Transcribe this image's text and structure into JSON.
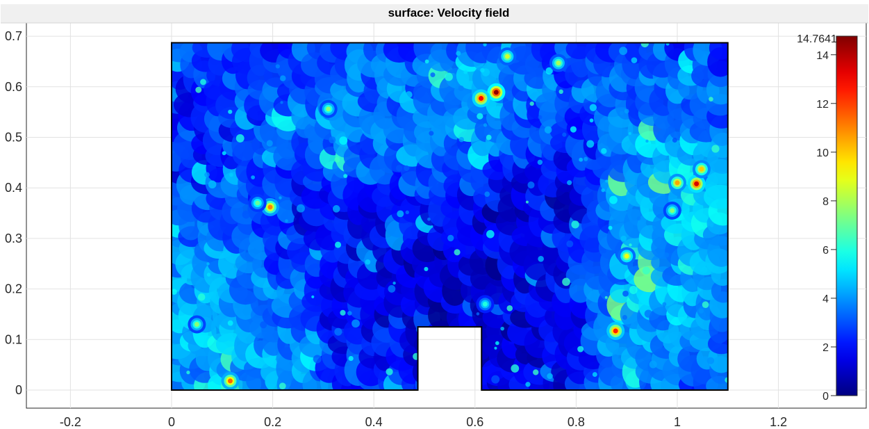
{
  "chart_data": {
    "type": "heatmap",
    "title": "surface: Velocity field",
    "xlabel": "",
    "ylabel": "",
    "xlim": [
      -0.3,
      1.35
    ],
    "ylim": [
      -0.035,
      0.72
    ],
    "grid": true,
    "x_ticks": [
      "-0.2",
      "0",
      "0.2",
      "0.4",
      "0.6",
      "0.8",
      "1",
      "1.2"
    ],
    "y_ticks": [
      "0",
      "0.1",
      "0.2",
      "0.3",
      "0.4",
      "0.5",
      "0.6",
      "0.7"
    ],
    "domain": {
      "outline": [
        [
          0,
          0
        ],
        [
          0,
          0.687
        ],
        [
          1.1,
          0.687
        ],
        [
          1.1,
          0
        ],
        [
          0.613,
          0
        ],
        [
          0.613,
          0.125
        ],
        [
          0.487,
          0.125
        ],
        [
          0.487,
          0
        ],
        [
          0,
          0
        ]
      ],
      "obstacle_x": [
        0.487,
        0.613
      ],
      "obstacle_top": 0.125
    },
    "colorbar": {
      "max_label": "14.7641",
      "min": 0,
      "max": 14.7641,
      "ticks": [
        "0",
        "2",
        "4",
        "6",
        "8",
        "10",
        "12",
        "14"
      ],
      "colormap": "jet"
    },
    "hotspots": [
      {
        "x": 0.642,
        "y": 0.589,
        "value": 14.5
      },
      {
        "x": 0.612,
        "y": 0.577,
        "value": 13.0
      },
      {
        "x": 0.195,
        "y": 0.362,
        "value": 11.0
      },
      {
        "x": 1.038,
        "y": 0.408,
        "value": 13.5
      },
      {
        "x": 1.0,
        "y": 0.41,
        "value": 10.5
      },
      {
        "x": 1.048,
        "y": 0.437,
        "value": 10.0
      },
      {
        "x": 0.878,
        "y": 0.117,
        "value": 12.5
      },
      {
        "x": 0.116,
        "y": 0.018,
        "value": 11.5
      },
      {
        "x": 0.9,
        "y": 0.265,
        "value": 9.0
      },
      {
        "x": 0.765,
        "y": 0.647,
        "value": 8.0
      },
      {
        "x": 0.664,
        "y": 0.66,
        "value": 8.5
      },
      {
        "x": 0.31,
        "y": 0.556,
        "value": 7.5
      },
      {
        "x": 0.05,
        "y": 0.13,
        "value": 7.5
      },
      {
        "x": 0.99,
        "y": 0.355,
        "value": 7.5
      },
      {
        "x": 0.17,
        "y": 0.37,
        "value": 7.0
      },
      {
        "x": 0.62,
        "y": 0.17,
        "value": 6.0
      }
    ],
    "regional_levels": [
      {
        "x": 0.1,
        "y": 0.2,
        "value": 5.0
      },
      {
        "x": 0.1,
        "y": 0.08,
        "value": 5.5
      },
      {
        "x": 0.05,
        "y": 0.05,
        "value": 4.0
      },
      {
        "x": 1.0,
        "y": 0.4,
        "value": 6.0
      },
      {
        "x": 1.02,
        "y": 0.25,
        "value": 5.0
      },
      {
        "x": 0.93,
        "y": 0.13,
        "value": 5.0
      },
      {
        "x": 0.6,
        "y": 0.55,
        "value": 5.0
      },
      {
        "x": 0.4,
        "y": 0.5,
        "value": 4.0
      },
      {
        "x": 0.25,
        "y": 0.62,
        "value": 3.5
      },
      {
        "x": 0.95,
        "y": 0.58,
        "value": 4.0
      },
      {
        "x": 0.5,
        "y": 0.27,
        "value": 0.6
      },
      {
        "x": 0.72,
        "y": 0.12,
        "value": 0.5
      },
      {
        "x": 0.75,
        "y": 0.38,
        "value": 0.8
      },
      {
        "x": 0.3,
        "y": 0.3,
        "value": 1.5
      }
    ]
  }
}
